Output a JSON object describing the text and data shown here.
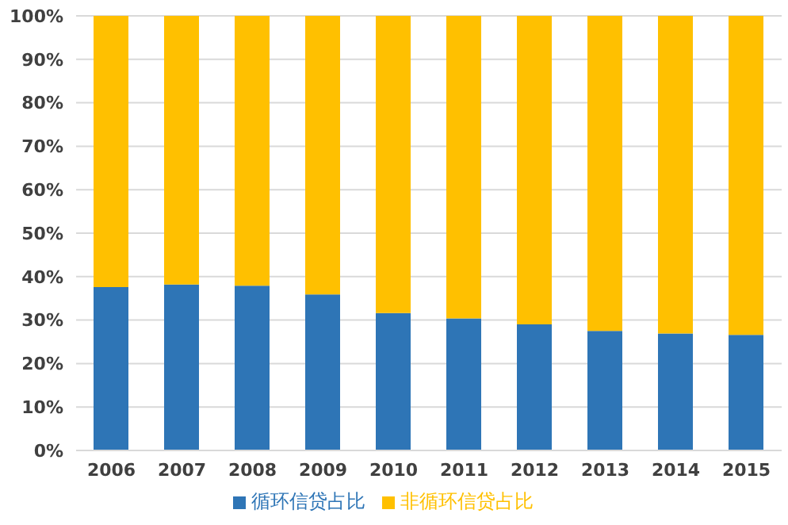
{
  "chart_data": {
    "type": "bar",
    "stacked": true,
    "categories": [
      "2006",
      "2007",
      "2008",
      "2009",
      "2010",
      "2011",
      "2012",
      "2013",
      "2014",
      "2015"
    ],
    "series": [
      {
        "name": "循环信贷占比",
        "color": "#2e75b6",
        "values": [
          37.6,
          38.2,
          37.9,
          35.9,
          31.6,
          30.4,
          29,
          27.5,
          26.9,
          26.6
        ]
      },
      {
        "name": "非循环信贷占比",
        "color": "#ffc000",
        "values": [
          62.4,
          61.8,
          62.1,
          64.1,
          68.4,
          69.6,
          71,
          72.5,
          73.1,
          73.4
        ]
      }
    ],
    "ylim": [
      0,
      100
    ],
    "yticks": [
      {
        "value": 0,
        "label": "0%"
      },
      {
        "value": 10,
        "label": "10%"
      },
      {
        "value": 20,
        "label": "20%"
      },
      {
        "value": 30,
        "label": "30%"
      },
      {
        "value": 40,
        "label": "40%"
      },
      {
        "value": 50,
        "label": "50%"
      },
      {
        "value": 60,
        "label": "60%"
      },
      {
        "value": 70,
        "label": "70%"
      },
      {
        "value": 80,
        "label": "80%"
      },
      {
        "value": 90,
        "label": "90%"
      },
      {
        "value": 100,
        "label": "100%"
      }
    ],
    "grid": "y",
    "legend": "bottom"
  }
}
